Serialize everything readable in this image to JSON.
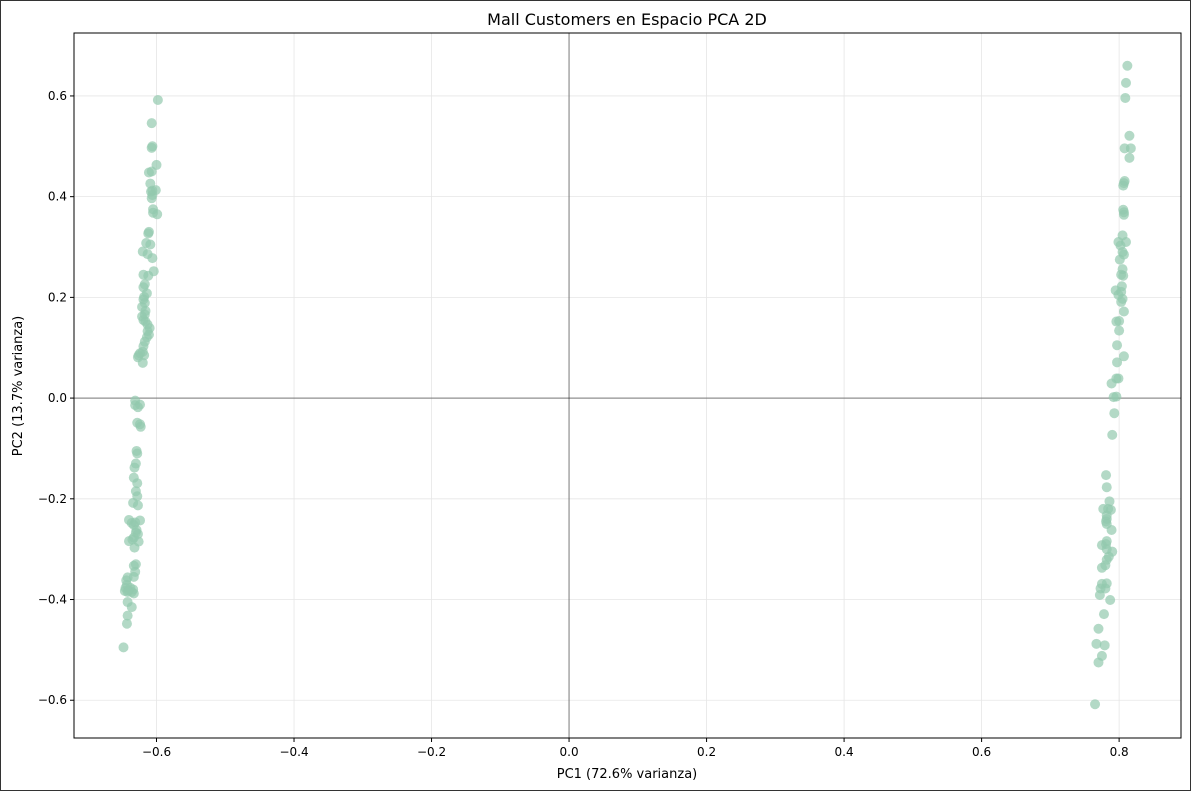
{
  "chart_data": {
    "type": "scatter",
    "title": "Mall Customers en Espacio PCA 2D",
    "xlabel": "PC1 (72.6% varianza)",
    "ylabel": "PC2 (13.7% varianza)",
    "xlim": [
      -0.72,
      0.89
    ],
    "ylim": [
      -0.675,
      0.725
    ],
    "xticks": [
      -0.6,
      -0.4,
      -0.2,
      0.0,
      0.2,
      0.4,
      0.6,
      0.8
    ],
    "yticks": [
      -0.6,
      -0.4,
      -0.2,
      0.0,
      0.2,
      0.4,
      0.6
    ],
    "xtick_labels": [
      "−0.6",
      "−0.4",
      "−0.2",
      "0.0",
      "0.2",
      "0.4",
      "0.6",
      "0.8"
    ],
    "ytick_labels": [
      "−0.6",
      "−0.4",
      "−0.2",
      "0.0",
      "0.2",
      "0.4",
      "0.6"
    ],
    "grid": true,
    "reference_lines": {
      "x": 0,
      "y": 0
    },
    "point_color": "#93c9ae",
    "point_alpha": 0.7,
    "series": [
      {
        "points": [
          [
            -0.598,
            0.592
          ],
          [
            -0.607,
            0.546
          ],
          [
            -0.606,
            0.5
          ],
          [
            -0.607,
            0.497
          ],
          [
            -0.6,
            0.463
          ],
          [
            -0.607,
            0.45
          ],
          [
            -0.611,
            0.448
          ],
          [
            -0.609,
            0.426
          ],
          [
            -0.601,
            0.413
          ],
          [
            -0.606,
            0.412
          ],
          [
            -0.608,
            0.41
          ],
          [
            -0.606,
            0.403
          ],
          [
            -0.607,
            0.397
          ],
          [
            -0.605,
            0.375
          ],
          [
            -0.605,
            0.368
          ],
          [
            -0.599,
            0.365
          ],
          [
            -0.611,
            0.33
          ],
          [
            -0.612,
            0.327
          ],
          [
            -0.615,
            0.308
          ],
          [
            -0.609,
            0.305
          ],
          [
            -0.62,
            0.291
          ],
          [
            -0.613,
            0.286
          ],
          [
            -0.606,
            0.278
          ],
          [
            -0.604,
            0.252
          ],
          [
            -0.619,
            0.245
          ],
          [
            -0.612,
            0.243
          ],
          [
            -0.617,
            0.226
          ],
          [
            -0.619,
            0.22
          ],
          [
            -0.614,
            0.208
          ],
          [
            -0.618,
            0.201
          ],
          [
            -0.619,
            0.196
          ],
          [
            -0.617,
            0.189
          ],
          [
            -0.621,
            0.181
          ],
          [
            -0.616,
            0.173
          ],
          [
            -0.617,
            0.166
          ],
          [
            -0.621,
            0.162
          ],
          [
            -0.619,
            0.155
          ],
          [
            -0.616,
            0.152
          ],
          [
            -0.613,
            0.146
          ],
          [
            -0.61,
            0.139
          ],
          [
            -0.613,
            0.133
          ],
          [
            -0.611,
            0.126
          ],
          [
            -0.614,
            0.121
          ],
          [
            -0.617,
            0.112
          ],
          [
            -0.619,
            0.103
          ],
          [
            -0.62,
            0.092
          ],
          [
            -0.624,
            0.089
          ],
          [
            -0.626,
            0.085
          ],
          [
            -0.618,
            0.085
          ],
          [
            -0.627,
            0.081
          ],
          [
            -0.62,
            0.07
          ],
          [
            -0.631,
            -0.005
          ],
          [
            -0.631,
            -0.014
          ],
          [
            -0.624,
            -0.013
          ],
          [
            -0.627,
            -0.018
          ],
          [
            -0.628,
            -0.049
          ],
          [
            -0.624,
            -0.052
          ],
          [
            -0.623,
            -0.057
          ],
          [
            -0.629,
            -0.105
          ],
          [
            -0.628,
            -0.11
          ],
          [
            -0.63,
            -0.13
          ],
          [
            -0.632,
            -0.138
          ],
          [
            -0.633,
            -0.158
          ],
          [
            -0.628,
            -0.169
          ],
          [
            -0.63,
            -0.185
          ],
          [
            -0.628,
            -0.195
          ],
          [
            -0.634,
            -0.208
          ],
          [
            -0.627,
            -0.213
          ],
          [
            -0.64,
            -0.242
          ],
          [
            -0.624,
            -0.243
          ],
          [
            -0.636,
            -0.248
          ],
          [
            -0.631,
            -0.247
          ],
          [
            -0.633,
            -0.252
          ],
          [
            -0.629,
            -0.262
          ],
          [
            -0.63,
            -0.267
          ],
          [
            -0.627,
            -0.27
          ],
          [
            -0.633,
            -0.277
          ],
          [
            -0.635,
            -0.281
          ],
          [
            -0.64,
            -0.284
          ],
          [
            -0.626,
            -0.285
          ],
          [
            -0.632,
            -0.297
          ],
          [
            -0.63,
            -0.33
          ],
          [
            -0.633,
            -0.333
          ],
          [
            -0.631,
            -0.345
          ],
          [
            -0.633,
            -0.355
          ],
          [
            -0.642,
            -0.356
          ],
          [
            -0.644,
            -0.362
          ],
          [
            -0.643,
            -0.371
          ],
          [
            -0.645,
            -0.377
          ],
          [
            -0.638,
            -0.377
          ],
          [
            -0.634,
            -0.38
          ],
          [
            -0.641,
            -0.382
          ],
          [
            -0.646,
            -0.383
          ],
          [
            -0.636,
            -0.385
          ],
          [
            -0.642,
            -0.385
          ],
          [
            -0.633,
            -0.388
          ],
          [
            -0.642,
            -0.405
          ],
          [
            -0.636,
            -0.415
          ],
          [
            -0.642,
            -0.432
          ],
          [
            -0.643,
            -0.448
          ],
          [
            -0.648,
            -0.495
          ],
          [
            0.812,
            0.66
          ],
          [
            0.81,
            0.626
          ],
          [
            0.809,
            0.596
          ],
          [
            0.815,
            0.521
          ],
          [
            0.817,
            0.496
          ],
          [
            0.808,
            0.496
          ],
          [
            0.815,
            0.477
          ],
          [
            0.808,
            0.431
          ],
          [
            0.807,
            0.427
          ],
          [
            0.806,
            0.422
          ],
          [
            0.806,
            0.374
          ],
          [
            0.807,
            0.369
          ],
          [
            0.807,
            0.364
          ],
          [
            0.805,
            0.323
          ],
          [
            0.81,
            0.31
          ],
          [
            0.799,
            0.31
          ],
          [
            0.802,
            0.303
          ],
          [
            0.805,
            0.29
          ],
          [
            0.807,
            0.285
          ],
          [
            0.801,
            0.275
          ],
          [
            0.805,
            0.256
          ],
          [
            0.803,
            0.245
          ],
          [
            0.806,
            0.243
          ],
          [
            0.804,
            0.222
          ],
          [
            0.795,
            0.214
          ],
          [
            0.803,
            0.211
          ],
          [
            0.799,
            0.205
          ],
          [
            0.805,
            0.197
          ],
          [
            0.803,
            0.191
          ],
          [
            0.807,
            0.172
          ],
          [
            0.8,
            0.153
          ],
          [
            0.796,
            0.152
          ],
          [
            0.8,
            0.134
          ],
          [
            0.797,
            0.105
          ],
          [
            0.807,
            0.083
          ],
          [
            0.797,
            0.071
          ],
          [
            0.796,
            0.039
          ],
          [
            0.799,
            0.039
          ],
          [
            0.789,
            0.029
          ],
          [
            0.796,
            0.003
          ],
          [
            0.792,
            0.002
          ],
          [
            0.793,
            -0.03
          ],
          [
            0.79,
            -0.073
          ],
          [
            0.781,
            -0.153
          ],
          [
            0.782,
            -0.177
          ],
          [
            0.786,
            -0.205
          ],
          [
            0.777,
            -0.22
          ],
          [
            0.784,
            -0.22
          ],
          [
            0.788,
            -0.222
          ],
          [
            0.782,
            -0.233
          ],
          [
            0.782,
            -0.24
          ],
          [
            0.781,
            -0.245
          ],
          [
            0.782,
            -0.25
          ],
          [
            0.789,
            -0.262
          ],
          [
            0.782,
            -0.284
          ],
          [
            0.781,
            -0.29
          ],
          [
            0.775,
            -0.292
          ],
          [
            0.782,
            -0.3
          ],
          [
            0.79,
            -0.305
          ],
          [
            0.785,
            -0.315
          ],
          [
            0.782,
            -0.321
          ],
          [
            0.78,
            -0.332
          ],
          [
            0.775,
            -0.337
          ],
          [
            0.782,
            -0.368
          ],
          [
            0.775,
            -0.369
          ],
          [
            0.78,
            -0.378
          ],
          [
            0.773,
            -0.378
          ],
          [
            0.772,
            -0.391
          ],
          [
            0.787,
            -0.401
          ],
          [
            0.778,
            -0.429
          ],
          [
            0.77,
            -0.458
          ],
          [
            0.767,
            -0.488
          ],
          [
            0.779,
            -0.491
          ],
          [
            0.775,
            -0.512
          ],
          [
            0.77,
            -0.525
          ],
          [
            0.765,
            -0.608
          ]
        ]
      }
    ]
  }
}
